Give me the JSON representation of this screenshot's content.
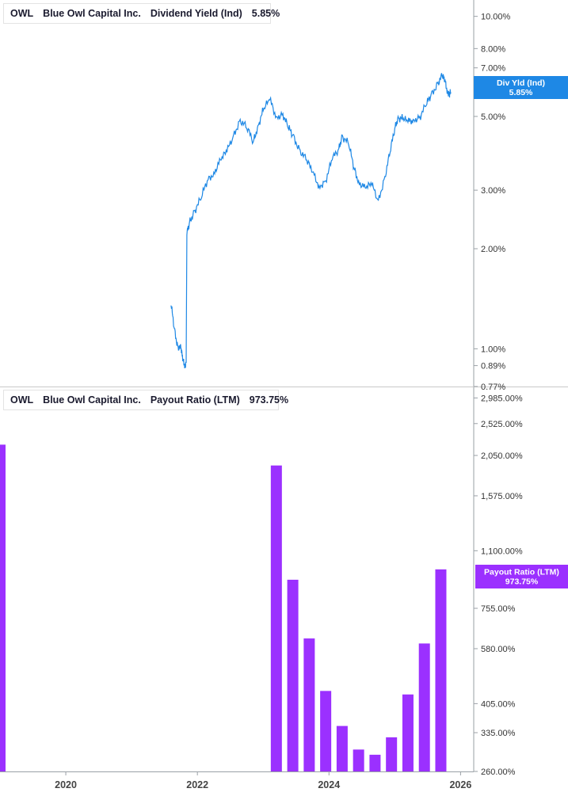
{
  "top_panel": {
    "legend": {
      "ticker": "OWL",
      "company": "Blue Owl Capital Inc.",
      "metric": "Dividend Yield (Ind)",
      "value": "5.85%"
    },
    "badge": {
      "label": "Div Yld (Ind)",
      "value": "5.85%"
    },
    "color": "#1e88e5"
  },
  "bottom_panel": {
    "legend": {
      "ticker": "OWL",
      "company": "Blue Owl Capital Inc.",
      "metric": "Payout Ratio (LTM)",
      "value": "973.75%"
    },
    "badge": {
      "label": "Payout Ratio (LTM)",
      "value": "973.75%"
    },
    "color": "#9b30ff"
  },
  "x_axis": {
    "ticks": [
      "2020",
      "2022",
      "2024",
      "2026"
    ],
    "tick_values": [
      2020,
      2022,
      2024,
      2026
    ],
    "range": [
      2019.0,
      2026.2
    ]
  },
  "chart_data": [
    {
      "type": "line",
      "title": "Dividend Yield (Ind)",
      "scale": "log",
      "ylim": [
        0.77,
        11.2
      ],
      "y_ticks": [
        "10.00%",
        "8.00%",
        "7.00%",
        "5.00%",
        "3.00%",
        "2.00%",
        "1.00%",
        "0.89%",
        "0.77%"
      ],
      "y_tick_values": [
        10.0,
        8.0,
        7.0,
        5.0,
        3.0,
        2.0,
        1.0,
        0.89,
        0.77
      ],
      "series": [
        {
          "name": "OWL",
          "x": [
            2021.6,
            2021.65,
            2021.7,
            2021.75,
            2021.78,
            2021.81,
            2021.83,
            2021.84,
            2021.88,
            2021.95,
            2022.05,
            2022.15,
            2022.25,
            2022.35,
            2022.45,
            2022.55,
            2022.65,
            2022.75,
            2022.85,
            2022.92,
            2023.0,
            2023.1,
            2023.2,
            2023.3,
            2023.38,
            2023.45,
            2023.55,
            2023.65,
            2023.75,
            2023.85,
            2023.95,
            2024.05,
            2024.15,
            2024.2,
            2024.3,
            2024.38,
            2024.45,
            2024.55,
            2024.65,
            2024.75,
            2024.85,
            2024.93,
            2025.0,
            2025.05,
            2025.12,
            2025.2,
            2025.28,
            2025.38,
            2025.48,
            2025.55,
            2025.65,
            2025.72,
            2025.76,
            2025.8,
            2025.83,
            2025.85
          ],
          "y": [
            1.35,
            1.15,
            1.02,
            1.0,
            0.92,
            0.9,
            0.91,
            2.2,
            2.4,
            2.6,
            2.8,
            3.2,
            3.4,
            3.7,
            3.9,
            4.4,
            4.9,
            4.6,
            4.2,
            4.7,
            5.2,
            5.6,
            5.0,
            5.1,
            4.6,
            4.4,
            4.0,
            3.7,
            3.4,
            3.1,
            3.2,
            3.7,
            4.0,
            4.4,
            4.1,
            3.5,
            3.2,
            3.05,
            3.1,
            2.8,
            3.3,
            3.9,
            4.6,
            5.0,
            4.9,
            4.8,
            4.9,
            5.0,
            5.4,
            5.8,
            6.3,
            6.6,
            6.4,
            6.0,
            5.85,
            5.85
          ]
        }
      ]
    },
    {
      "type": "bar",
      "title": "Payout Ratio (LTM)",
      "scale": "log",
      "ylim": [
        260,
        3200
      ],
      "y_ticks": [
        "2,985.00%",
        "2,525.00%",
        "2,050.00%",
        "1,575.00%",
        "1,100.00%",
        "755.00%",
        "580.00%",
        "405.00%",
        "335.00%",
        "260.00%"
      ],
      "y_tick_values": [
        2985,
        2525,
        2050,
        1575,
        1100,
        755,
        580,
        405,
        335,
        260
      ],
      "series": [
        {
          "name": "OWL",
          "x": [
            2018.9,
            2023.2,
            2023.45,
            2023.7,
            2023.95,
            2024.2,
            2024.45,
            2024.7,
            2024.95,
            2025.2,
            2025.45,
            2025.7
          ],
          "values": [
            2200,
            1920,
            910,
            620,
            440,
            350,
            300,
            290,
            325,
            430,
            600,
            973.75
          ]
        }
      ]
    }
  ]
}
